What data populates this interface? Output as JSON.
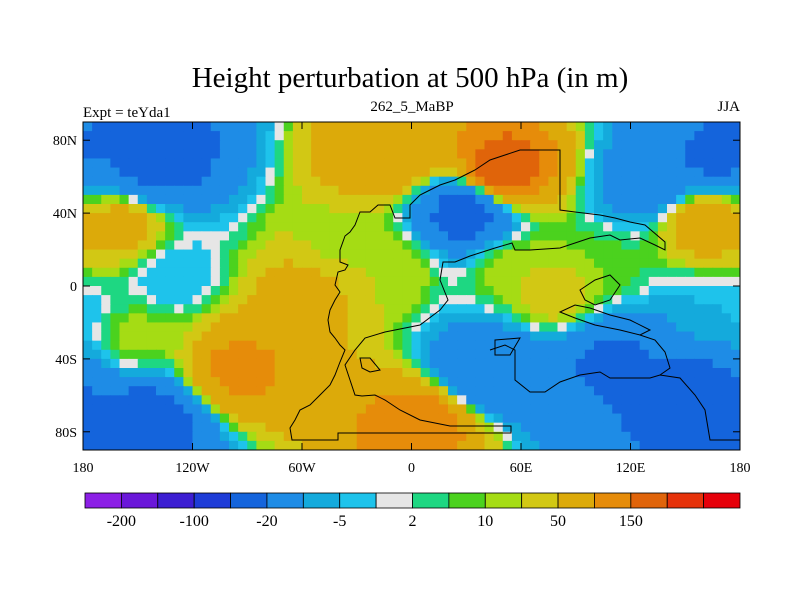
{
  "chart_data": {
    "type": "heatmap",
    "title": "Height perturbation at 500 hPa (in m)",
    "left_string": "Expt = teYda1",
    "center_string": "262_5_MaBP",
    "right_string": "JJA",
    "x_range": [
      -180,
      180
    ],
    "y_range": [
      -90,
      90
    ],
    "x_ticks": [
      {
        "value": -180,
        "label": "180"
      },
      {
        "value": -120,
        "label": "120W"
      },
      {
        "value": -60,
        "label": "60W"
      },
      {
        "value": 0,
        "label": "0"
      },
      {
        "value": 60,
        "label": "60E"
      },
      {
        "value": 120,
        "label": "120E"
      },
      {
        "value": 180,
        "label": "180"
      }
    ],
    "y_ticks": [
      {
        "value": 80,
        "label": "80N"
      },
      {
        "value": 40,
        "label": "40N"
      },
      {
        "value": 0,
        "label": "0"
      },
      {
        "value": -40,
        "label": "40S"
      },
      {
        "value": -80,
        "label": "80S"
      }
    ],
    "colorbar": {
      "colors": [
        "#8c1fe6",
        "#6a17d9",
        "#3c1ed2",
        "#1e3cd7",
        "#1464dc",
        "#1e8ce6",
        "#14aadc",
        "#1ec3eb",
        "#e6e6e6",
        "#1ed782",
        "#4bd21e",
        "#a5dc14",
        "#d2c814",
        "#dcaa0a",
        "#e68c0a",
        "#e0640a",
        "#e6320a",
        "#e6000a"
      ],
      "labels": [
        {
          "boundary": 1,
          "label": "-200"
        },
        {
          "boundary": 3,
          "label": "-100"
        },
        {
          "boundary": 5,
          "label": "-20"
        },
        {
          "boundary": 7,
          "label": "-5"
        },
        {
          "boundary": 9,
          "label": "2"
        },
        {
          "boundary": 11,
          "label": "10"
        },
        {
          "boundary": 13,
          "label": "50"
        },
        {
          "boundary": 15,
          "label": "150"
        }
      ]
    },
    "field_features": [
      {
        "lon": -140,
        "lat": 70,
        "value": -90
      },
      {
        "lon": -160,
        "lat": 32,
        "value": 30
      },
      {
        "lon": -130,
        "lat": 5,
        "value": -10
      },
      {
        "lon": -150,
        "lat": -28,
        "value": 8
      },
      {
        "lon": -95,
        "lat": -45,
        "value": 60
      },
      {
        "lon": -145,
        "lat": -75,
        "value": -90
      },
      {
        "lon": -15,
        "lat": 70,
        "value": 45
      },
      {
        "lon": 50,
        "lat": 63,
        "value": 100
      },
      {
        "lon": 30,
        "lat": 40,
        "value": -90
      },
      {
        "lon": -10,
        "lat": 10,
        "value": 10
      },
      {
        "lon": 80,
        "lat": -5,
        "value": 20
      },
      {
        "lon": 40,
        "lat": -45,
        "value": -60
      },
      {
        "lon": 110,
        "lat": -40,
        "value": -70
      },
      {
        "lon": 5,
        "lat": -75,
        "value": 70
      },
      {
        "lon": 165,
        "lat": 70,
        "value": -70
      },
      {
        "lon": 160,
        "lat": 35,
        "value": 40
      },
      {
        "lon": 165,
        "lat": -15,
        "value": -10
      },
      {
        "lon": 155,
        "lat": -60,
        "value": -90
      },
      {
        "lon": 55,
        "lat": 10,
        "value": 10
      },
      {
        "lon": 105,
        "lat": 10,
        "value": 5
      },
      {
        "lon": -40,
        "lat": 25,
        "value": 8
      },
      {
        "lon": -60,
        "lat": -5,
        "value": 30
      },
      {
        "lon": 130,
        "lat": 55,
        "value": -40
      }
    ]
  }
}
